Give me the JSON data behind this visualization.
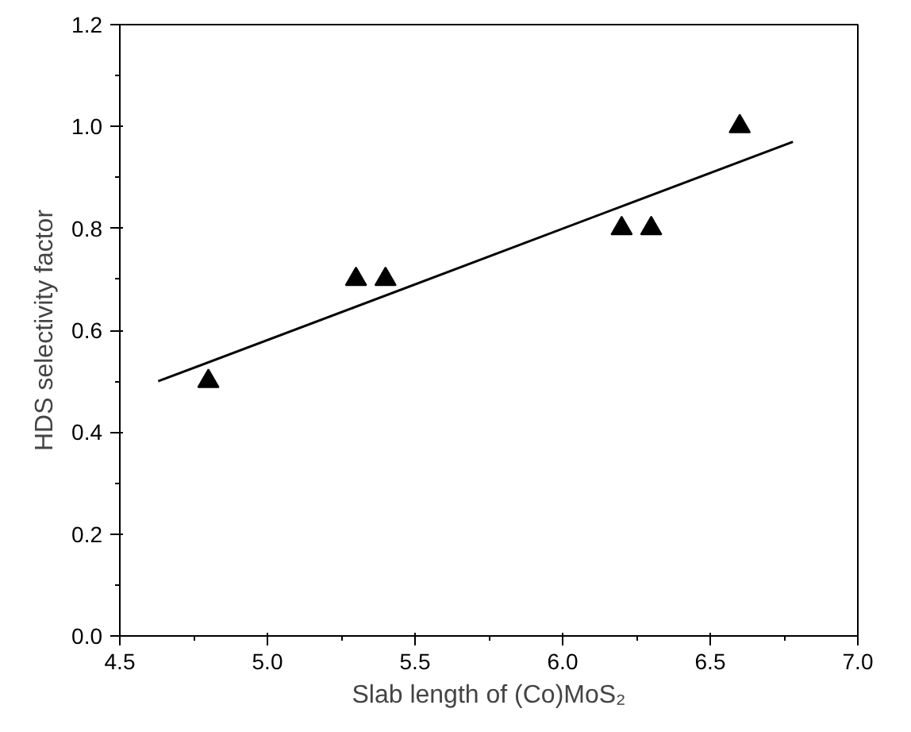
{
  "chart_data": {
    "type": "scatter",
    "xlabel": "Slab length of (Co)MoS₂",
    "ylabel": "HDS selectivity factor",
    "xlim": [
      4.5,
      7.0
    ],
    "xticks": [
      4.5,
      {
        "value": 5,
        "label": "5.0"
      },
      5.5,
      {
        "value": 6,
        "label": "6.0"
      },
      6.5,
      {
        "value": 7,
        "label": "7.0"
      }
    ],
    "ylim": [
      0.0,
      1.2
    ],
    "yticks": [
      {
        "value": 0,
        "label": "0.0"
      },
      0.2,
      0.4,
      0.6,
      0.8,
      {
        "value": 1,
        "label": "1.0"
      },
      1.2
    ],
    "x": [
      4.8,
      5.3,
      5.4,
      6.2,
      6.3,
      6.6
    ],
    "series": [
      {
        "color": "#000000",
        "marker": "triangle",
        "values": [
          0.5,
          0.7,
          0.7,
          0.8,
          0.8,
          1.0
        ]
      },
      {
        "type": "line",
        "color": "#000000",
        "line_style": "solid",
        "x": [
          4.63,
          6.78
        ],
        "values": [
          0.5,
          0.97
        ]
      }
    ],
    "grid": false
  }
}
